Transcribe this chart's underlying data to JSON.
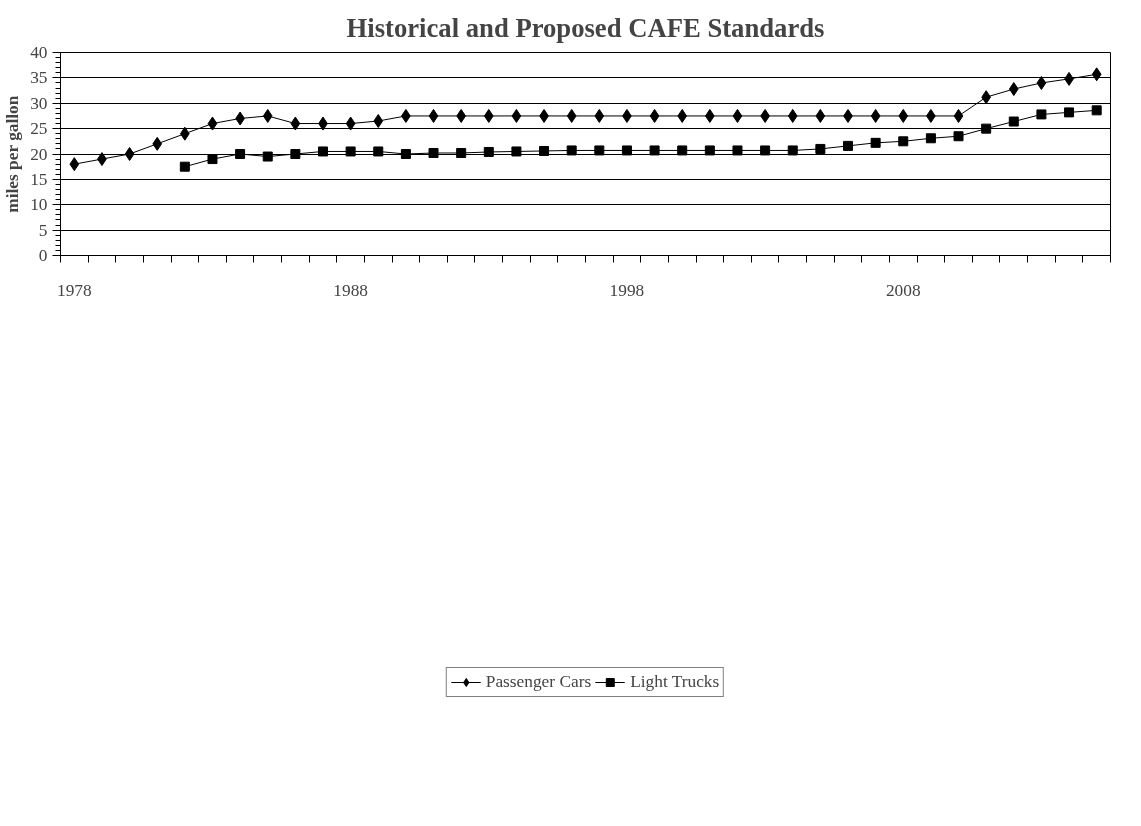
{
  "chart_data": {
    "type": "line",
    "title": "Historical and Proposed CAFE Standards",
    "ylabel": "miles per gallon",
    "categories": [
      "1978",
      null,
      null,
      null,
      null,
      null,
      null,
      null,
      null,
      null,
      "1988",
      null,
      null,
      null,
      null,
      null,
      null,
      null,
      null,
      null,
      "1998",
      null,
      null,
      null,
      null,
      null,
      null,
      null,
      null,
      null,
      "2008",
      null,
      null,
      null,
      null,
      null,
      null,
      null
    ],
    "series": [
      {
        "name": "Passenger Cars",
        "color": "#000000",
        "marker": "diamond",
        "values": [
          18,
          19,
          20,
          22,
          24,
          26,
          27,
          27.5,
          26,
          26,
          26,
          26.5,
          27.5,
          27.5,
          27.5,
          27.5,
          27.5,
          27.5,
          27.5,
          27.5,
          27.5,
          27.5,
          27.5,
          27.5,
          27.5,
          27.5,
          27.5,
          27.5,
          27.5,
          27.5,
          27.5,
          27.5,
          27.5,
          31.2,
          32.8,
          34.0,
          34.8,
          35.7
        ]
      },
      {
        "name": "Light Trucks",
        "color": "#000000",
        "marker": "square",
        "values": [
          null,
          null,
          null,
          null,
          17.5,
          19.0,
          20.0,
          19.5,
          20.0,
          20.5,
          20.5,
          20.5,
          20.0,
          20.2,
          20.2,
          20.4,
          20.5,
          20.6,
          20.7,
          20.7,
          20.7,
          20.7,
          20.7,
          20.7,
          20.7,
          20.7,
          20.7,
          21.0,
          21.6,
          22.2,
          22.5,
          23.1,
          23.5,
          25.0,
          26.4,
          27.8,
          28.2,
          28.6
        ]
      }
    ],
    "ylim": [
      0,
      40
    ],
    "yticks": [
      0,
      5,
      10,
      15,
      20,
      25,
      30,
      35,
      40
    ],
    "grid": "y",
    "legend": "bottom"
  }
}
